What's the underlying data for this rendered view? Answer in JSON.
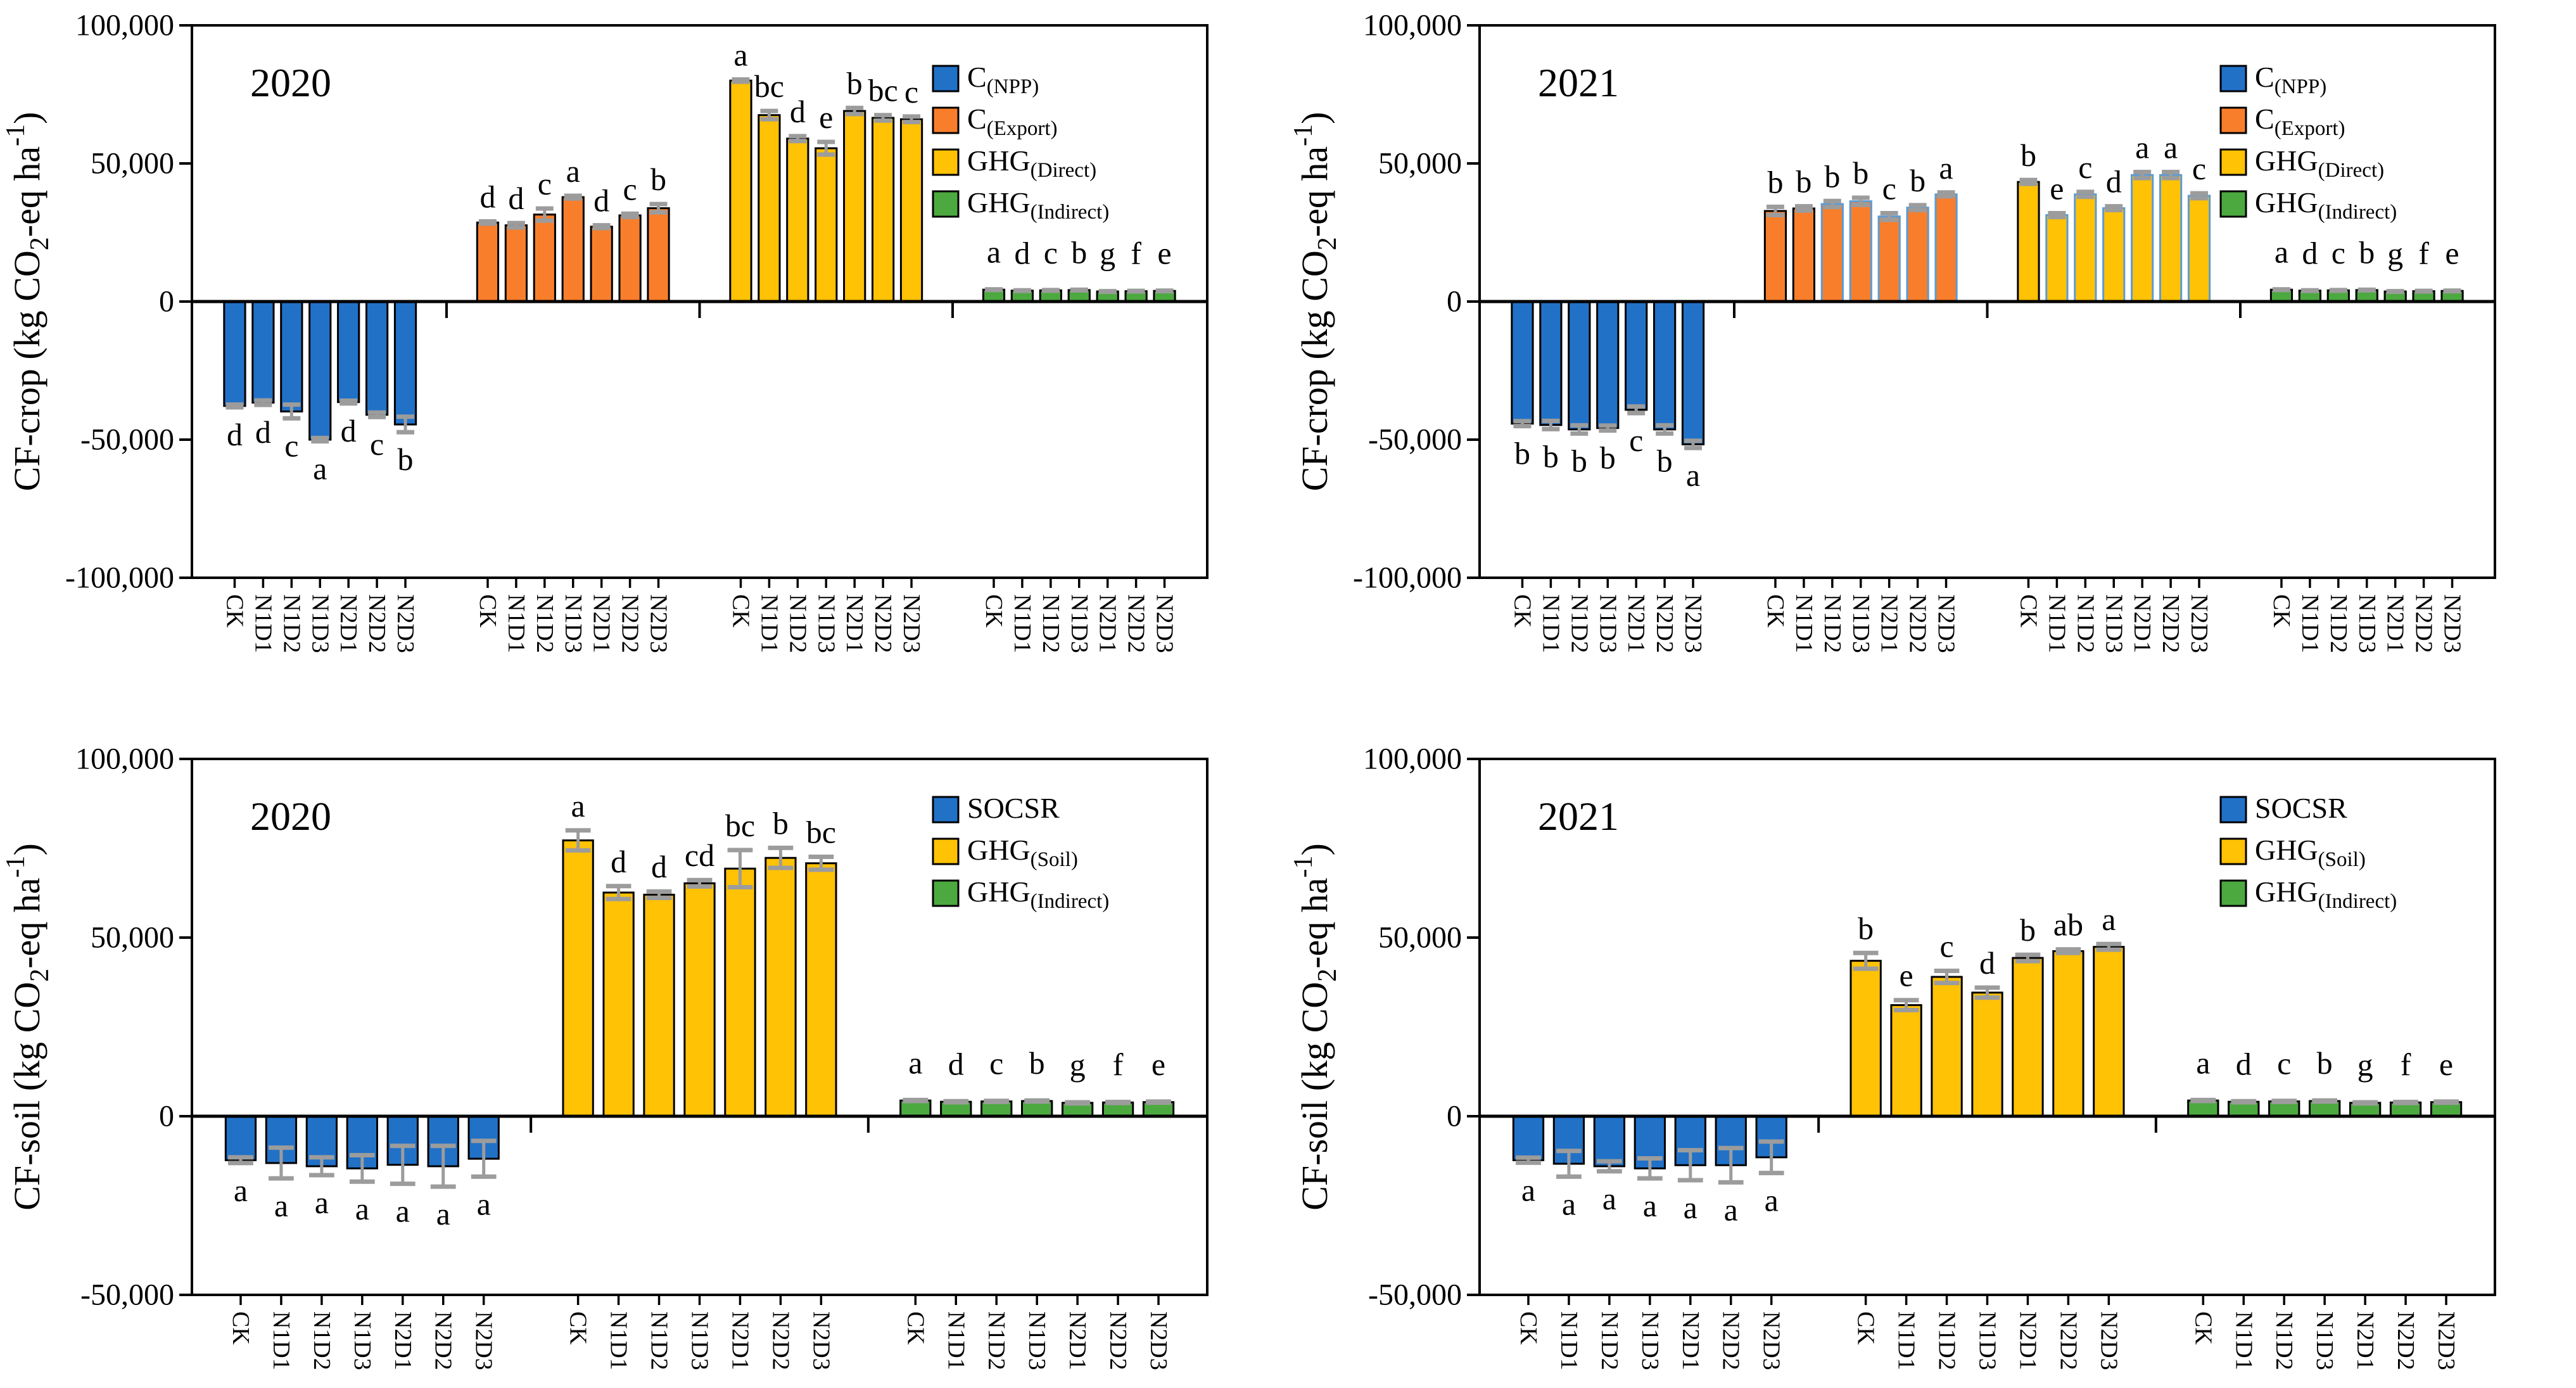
{
  "colors": {
    "blue": "#2171C7",
    "orange": "#F97E2B",
    "yellow": "#FFC205",
    "green": "#4CA93F",
    "error_gray": "#9C9C9C",
    "axis_black": "#000000",
    "alt_stroke": "#5B9BD5"
  },
  "categories": [
    "CK",
    "N1D1",
    "N1D2",
    "N1D3",
    "N2D1",
    "N2D2",
    "N2D3"
  ],
  "chart_data": [
    {
      "type": "bar",
      "panel_name": "panel-cf-crop-2020",
      "title": "2020",
      "ylabel": "CF-crop (kg CO2-eq ha-1)",
      "ylabel_parts": [
        [
          "CF-crop (kg CO",
          "n"
        ],
        [
          "2",
          "sub"
        ],
        [
          "-eq ha",
          "n"
        ],
        [
          "-1",
          "sup"
        ],
        [
          ")",
          "n"
        ]
      ],
      "ylim": [
        -100000,
        100000
      ],
      "yticks": [
        {
          "value": 100000,
          "label": "100,000"
        },
        {
          "value": 50000,
          "label": "50,000"
        },
        {
          "value": 0,
          "label": "0"
        },
        {
          "value": -50000,
          "label": "-50,000"
        },
        {
          "value": -100000,
          "label": "-100,000"
        }
      ],
      "legend": [
        {
          "main": "C",
          "sub": "(NPP)",
          "color_key": "blue"
        },
        {
          "main": "C",
          "sub": "(Export)",
          "color_key": "orange"
        },
        {
          "main": "GHG",
          "sub": "(Direct)",
          "color_key": "yellow"
        },
        {
          "main": "GHG",
          "sub": "(Indirect)",
          "color_key": "green"
        }
      ],
      "series": [
        {
          "name": "C(NPP)",
          "color_key": "blue",
          "values": [
            -37800,
            -36600,
            -39800,
            -50000,
            -36400,
            -41000,
            -44500
          ],
          "errors": [
            500,
            800,
            2500,
            600,
            500,
            800,
            2800
          ],
          "letters": [
            "d",
            "d",
            "c",
            "a",
            "d",
            "c",
            "b"
          ]
        },
        {
          "name": "C(Export)",
          "color_key": "orange",
          "values": [
            28600,
            27600,
            31500,
            37800,
            27100,
            31200,
            33800
          ],
          "errors": [
            400,
            800,
            2200,
            500,
            500,
            600,
            1500
          ],
          "letters": [
            "d",
            "d",
            "c",
            "a",
            "d",
            "c",
            "b"
          ]
        },
        {
          "name": "GHG(Direct)",
          "color_key": "yellow",
          "values": [
            80000,
            67500,
            59000,
            55500,
            69000,
            66500,
            66000
          ],
          "errors": [
            400,
            1500,
            900,
            2300,
            1100,
            1000,
            1000
          ],
          "letters": [
            "a",
            "bc",
            "d",
            "e",
            "b",
            "bc",
            "c"
          ]
        },
        {
          "name": "GHG(Indirect)",
          "color_key": "green",
          "values": [
            4300,
            3950,
            4050,
            4150,
            3650,
            3750,
            3850
          ],
          "errors": [
            120,
            120,
            120,
            120,
            120,
            120,
            120
          ],
          "letters": [
            "a",
            "d",
            "c",
            "b",
            "g",
            "f",
            "e"
          ]
        }
      ]
    },
    {
      "type": "bar",
      "panel_name": "panel-cf-crop-2021",
      "title": "2021",
      "ylabel": "CF-crop (kg CO2-eq ha-1)",
      "ylabel_parts": [
        [
          "CF-crop (kg CO",
          "n"
        ],
        [
          "2",
          "sub"
        ],
        [
          "-eq ha",
          "n"
        ],
        [
          "-1",
          "sup"
        ],
        [
          ")",
          "n"
        ]
      ],
      "ylim": [
        -100000,
        100000
      ],
      "yticks": [
        {
          "value": 100000,
          "label": "100,000"
        },
        {
          "value": 50000,
          "label": "50,000"
        },
        {
          "value": 0,
          "label": "0"
        },
        {
          "value": -50000,
          "label": "-50,000"
        },
        {
          "value": -100000,
          "label": "-100,000"
        }
      ],
      "legend": [
        {
          "main": "C",
          "sub": "(NPP)",
          "color_key": "blue"
        },
        {
          "main": "C",
          "sub": "(Export)",
          "color_key": "orange"
        },
        {
          "main": "GHG",
          "sub": "(Direct)",
          "color_key": "yellow"
        },
        {
          "main": "GHG",
          "sub": "(Indirect)",
          "color_key": "green"
        }
      ],
      "series": [
        {
          "name": "C(NPP)",
          "color_key": "blue",
          "values": [
            -44200,
            -44700,
            -46300,
            -45800,
            -39200,
            -46300,
            -51700
          ],
          "errors": [
            900,
            1500,
            1500,
            900,
            1200,
            1500,
            1300
          ],
          "letters": [
            "b",
            "b",
            "b",
            "b",
            "c",
            "b",
            "a"
          ]
        },
        {
          "name": "C(Export)",
          "color_key": "orange",
          "values": [
            32800,
            33700,
            35300,
            36300,
            30800,
            34000,
            38800
          ],
          "errors": [
            1500,
            800,
            1100,
            1300,
            1200,
            900,
            700
          ],
          "letters": [
            "b",
            "b",
            "b",
            "b",
            "c",
            "b",
            "a"
          ],
          "blue_stroke": [
            2,
            3,
            4,
            5,
            6
          ]
        },
        {
          "name": "GHG(Direct)",
          "color_key": "yellow",
          "values": [
            43300,
            31300,
            38800,
            33800,
            45800,
            45800,
            38300
          ],
          "errors": [
            700,
            700,
            900,
            700,
            1100,
            1100,
            900
          ],
          "letters": [
            "b",
            "e",
            "c",
            "d",
            "a",
            "a",
            "c"
          ],
          "blue_stroke": [
            1,
            2,
            3,
            4,
            5,
            6
          ]
        },
        {
          "name": "GHG(Indirect)",
          "color_key": "green",
          "values": [
            4300,
            3950,
            4050,
            4150,
            3650,
            3750,
            3850
          ],
          "errors": [
            120,
            120,
            120,
            120,
            120,
            120,
            120
          ],
          "letters": [
            "a",
            "d",
            "c",
            "b",
            "g",
            "f",
            "e"
          ]
        }
      ]
    },
    {
      "type": "bar",
      "panel_name": "panel-cf-soil-2020",
      "title": "2020",
      "ylabel": "CF-soil (kg CO2-eq ha-1)",
      "ylabel_parts": [
        [
          "CF-soil (kg CO",
          "n"
        ],
        [
          "2",
          "sub"
        ],
        [
          "-eq ha",
          "n"
        ],
        [
          "-1",
          "sup"
        ],
        [
          ")",
          "n"
        ]
      ],
      "ylim": [
        -50000,
        100000
      ],
      "yticks": [
        {
          "value": 100000,
          "label": "100,000"
        },
        {
          "value": 50000,
          "label": "50,000"
        },
        {
          "value": 0,
          "label": "0"
        },
        {
          "value": -50000,
          "label": "-50,000"
        }
      ],
      "legend": [
        {
          "main": "SOCSR",
          "sub": "",
          "color_key": "blue"
        },
        {
          "main": "GHG",
          "sub": "(Soil)",
          "color_key": "yellow"
        },
        {
          "main": "GHG",
          "sub": "(Indirect)",
          "color_key": "green"
        }
      ],
      "series": [
        {
          "name": "SOCSR",
          "color_key": "blue",
          "values": [
            -12300,
            -13100,
            -14000,
            -14600,
            -13600,
            -14000,
            -11900
          ],
          "errors": [
            800,
            4300,
            2500,
            3700,
            5300,
            5700,
            5000
          ],
          "letters": [
            "a",
            "a",
            "a",
            "a",
            "a",
            "a",
            "a"
          ]
        },
        {
          "name": "GHG(Soil)",
          "color_key": "yellow",
          "values": [
            77200,
            62600,
            62000,
            65200,
            69300,
            72300,
            70800
          ],
          "errors": [
            2800,
            1800,
            900,
            900,
            5200,
            2800,
            1800
          ],
          "letters": [
            "a",
            "d",
            "d",
            "cd",
            "bc",
            "b",
            "bc"
          ]
        },
        {
          "name": "GHG(Indirect)",
          "color_key": "green",
          "values": [
            4400,
            4050,
            4150,
            4250,
            3750,
            3850,
            3950
          ],
          "errors": [
            150,
            150,
            150,
            150,
            150,
            150,
            150
          ],
          "letters": [
            "a",
            "d",
            "c",
            "b",
            "g",
            "f",
            "e"
          ]
        }
      ]
    },
    {
      "type": "bar",
      "panel_name": "panel-cf-soil-2021",
      "title": "2021",
      "ylabel": "CF-soil (kg CO2-eq ha-1)",
      "ylabel_parts": [
        [
          "CF-soil (kg CO",
          "n"
        ],
        [
          "2",
          "sub"
        ],
        [
          "-eq ha",
          "n"
        ],
        [
          "-1",
          "sup"
        ],
        [
          ")",
          "n"
        ]
      ],
      "ylim": [
        -50000,
        100000
      ],
      "yticks": [
        {
          "value": 100000,
          "label": "100,000"
        },
        {
          "value": 50000,
          "label": "50,000"
        },
        {
          "value": 0,
          "label": "0"
        },
        {
          "value": -50000,
          "label": "-50,000"
        }
      ],
      "legend": [
        {
          "main": "SOCSR",
          "sub": "",
          "color_key": "blue"
        },
        {
          "main": "GHG",
          "sub": "(Soil)",
          "color_key": "yellow"
        },
        {
          "main": "GHG",
          "sub": "(Indirect)",
          "color_key": "green"
        }
      ],
      "series": [
        {
          "name": "SOCSR",
          "color_key": "blue",
          "values": [
            -12300,
            -13300,
            -14000,
            -14600,
            -13700,
            -13700,
            -11500
          ],
          "errors": [
            700,
            3600,
            1400,
            2800,
            4200,
            4800,
            4400
          ],
          "letters": [
            "a",
            "a",
            "a",
            "a",
            "a",
            "a",
            "a"
          ]
        },
        {
          "name": "GHG(Soil)",
          "color_key": "yellow",
          "values": [
            43500,
            31100,
            39000,
            34600,
            44300,
            46200,
            47400
          ],
          "errors": [
            2200,
            1400,
            1700,
            1400,
            900,
            500,
            800
          ],
          "letters": [
            "b",
            "e",
            "c",
            "d",
            "b",
            "ab",
            "a"
          ]
        },
        {
          "name": "GHG(Indirect)",
          "color_key": "green",
          "values": [
            4400,
            4050,
            4150,
            4250,
            3750,
            3850,
            3950
          ],
          "errors": [
            150,
            150,
            150,
            150,
            150,
            150,
            150
          ],
          "letters": [
            "a",
            "d",
            "c",
            "b",
            "g",
            "f",
            "e"
          ]
        }
      ]
    }
  ]
}
